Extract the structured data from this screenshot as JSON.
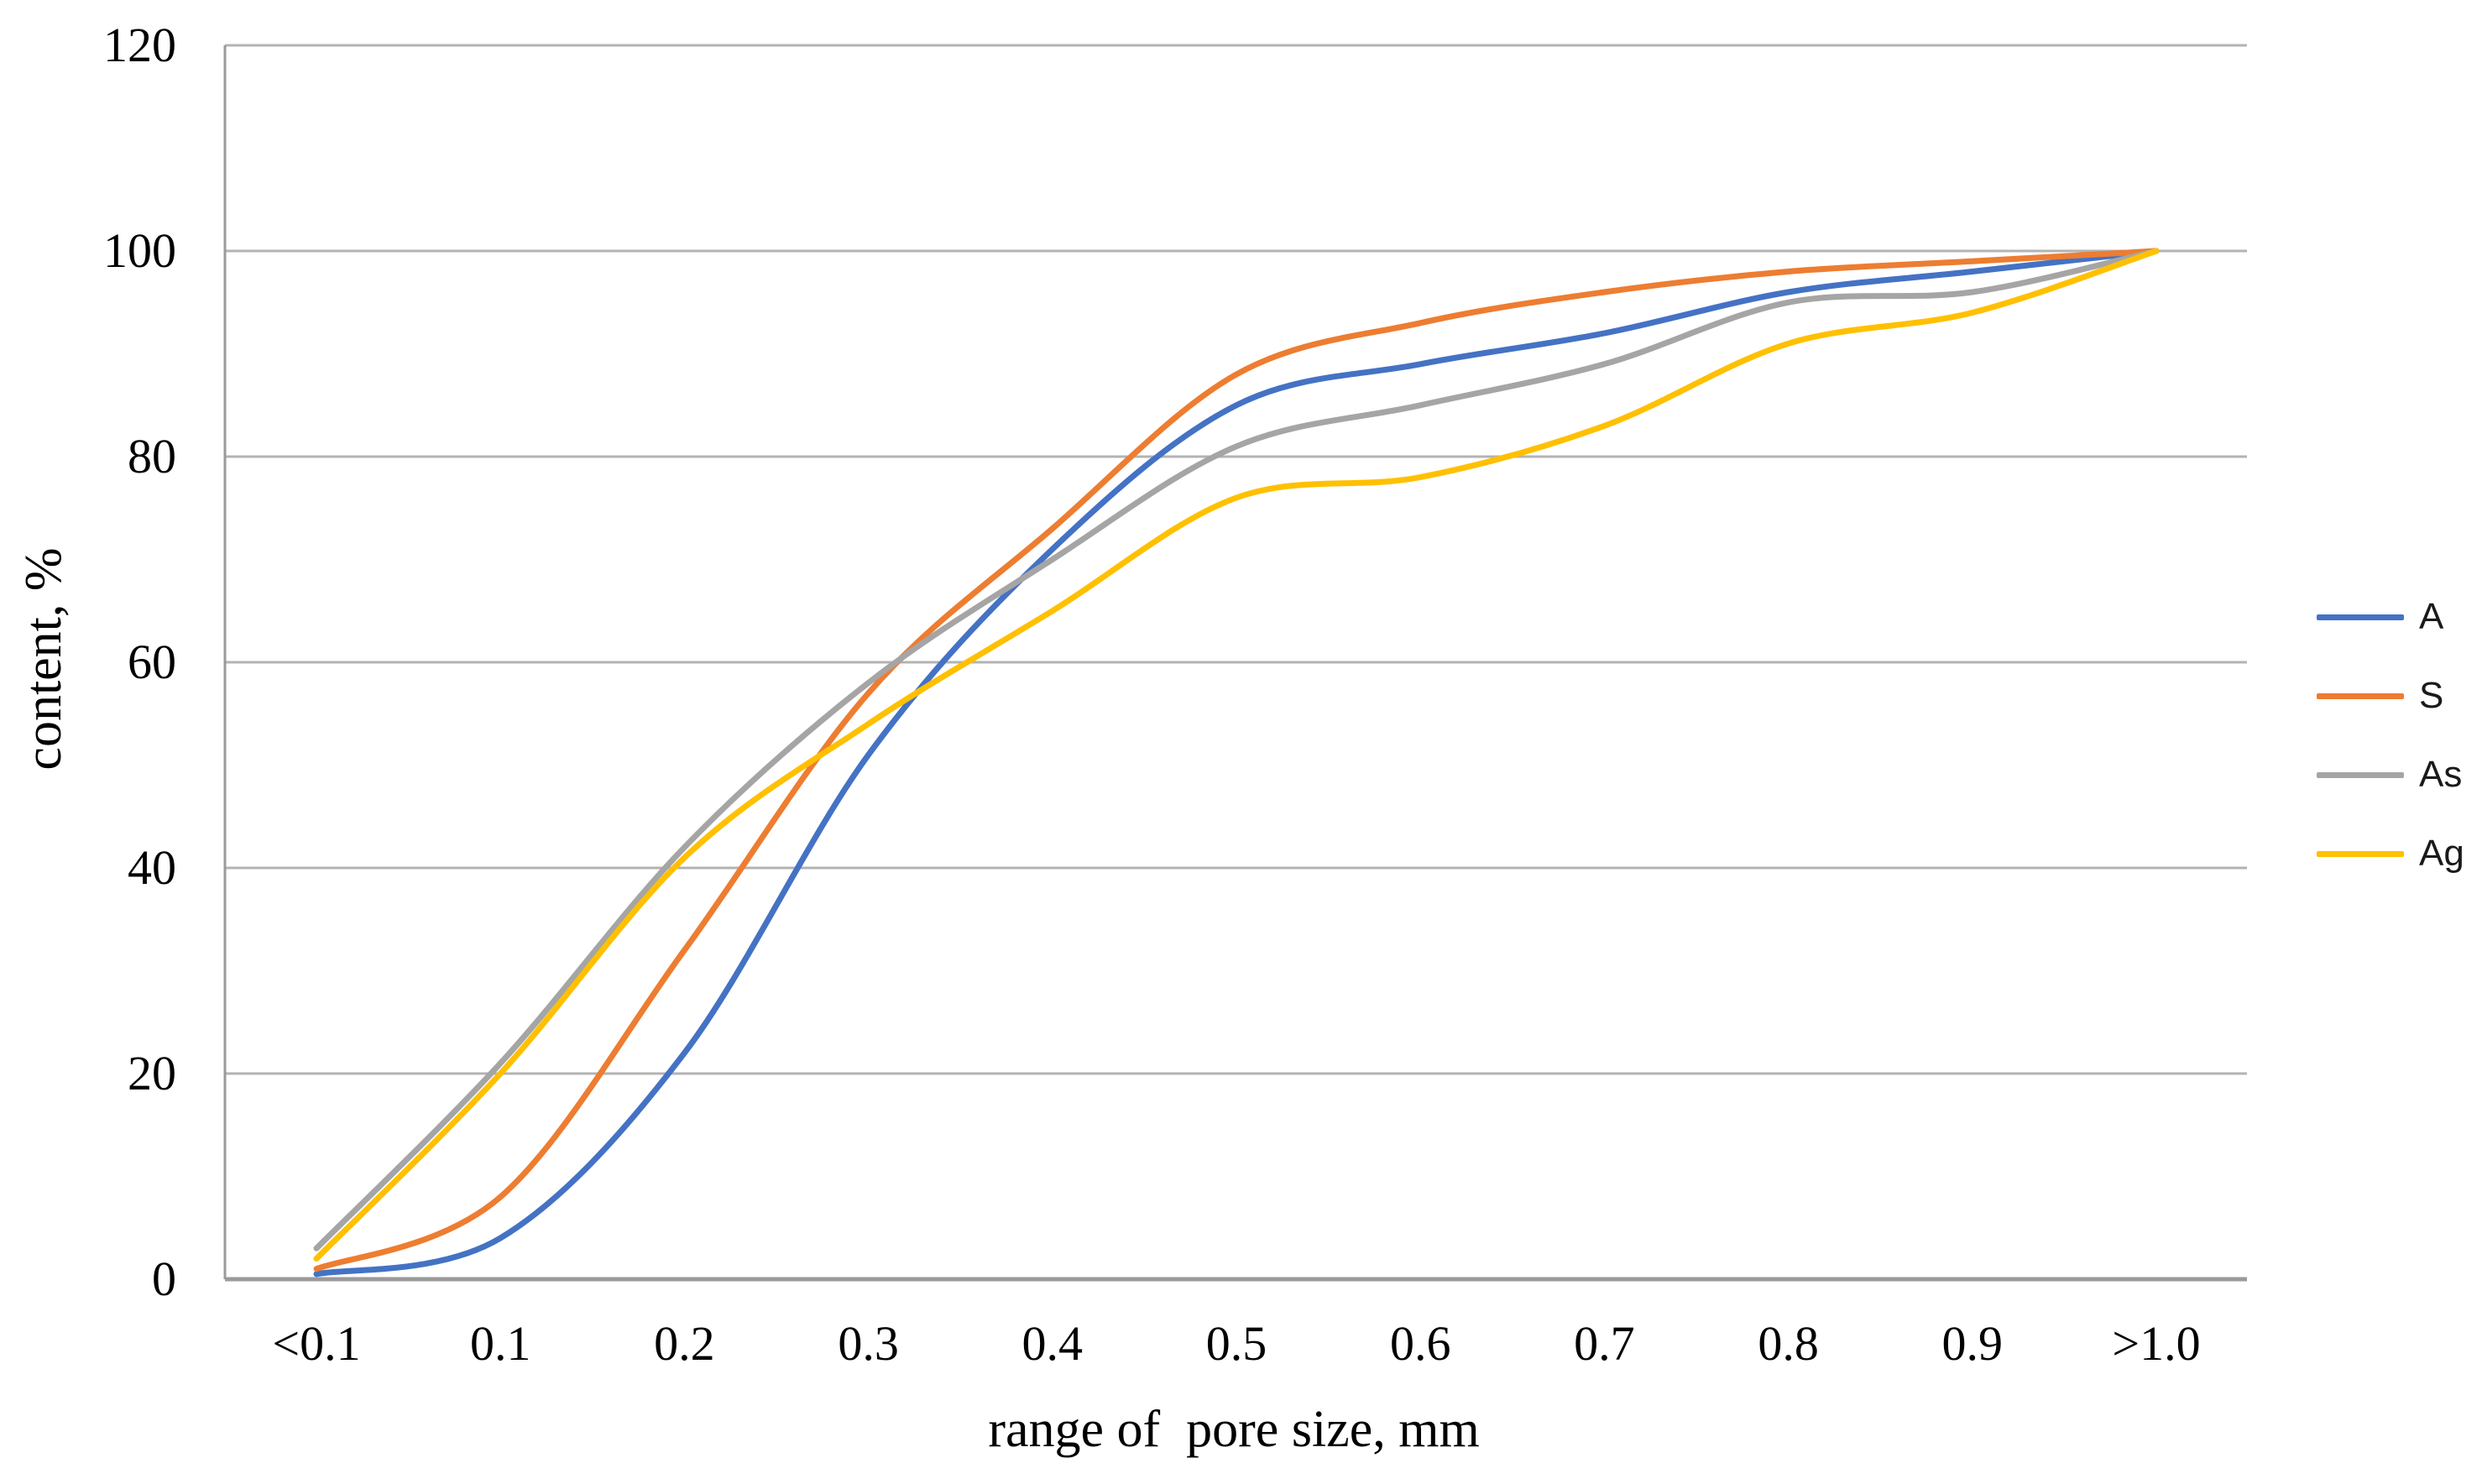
{
  "chart_data": {
    "type": "line",
    "title": "",
    "xlabel": "range of  pore size, mm",
    "ylabel": "content, %",
    "categories": [
      "<0.1",
      "0.1",
      "0.2",
      "0.3",
      "0.4",
      "0.5",
      "0.6",
      "0.7",
      "0.8",
      "0.9",
      ">1.0"
    ],
    "yticks": [
      0,
      20,
      40,
      60,
      80,
      100,
      120
    ],
    "ylim": [
      0,
      120
    ],
    "grid": true,
    "line_style": "smooth",
    "legend_position": "right",
    "series": [
      {
        "name": "A",
        "color": "#4472C4",
        "values": [
          0.5,
          4,
          22,
          51,
          71,
          85,
          89,
          92,
          96,
          98,
          100
        ]
      },
      {
        "name": "S",
        "color": "#ED7D31",
        "values": [
          1,
          8,
          32,
          57,
          73,
          88,
          93,
          96,
          98,
          99,
          100
        ]
      },
      {
        "name": "As",
        "color": "#A5A5A5",
        "values": [
          3,
          21,
          42,
          58,
          70,
          81,
          85,
          89,
          95,
          96,
          100
        ]
      },
      {
        "name": "Ag",
        "color": "#FFC000",
        "values": [
          2,
          20,
          41,
          54,
          65,
          76,
          78,
          83,
          91,
          94,
          100
        ]
      }
    ],
    "colors": {
      "gridline": "#b3b3b3",
      "axis": "#9a9a9a",
      "text": "#000000"
    }
  }
}
